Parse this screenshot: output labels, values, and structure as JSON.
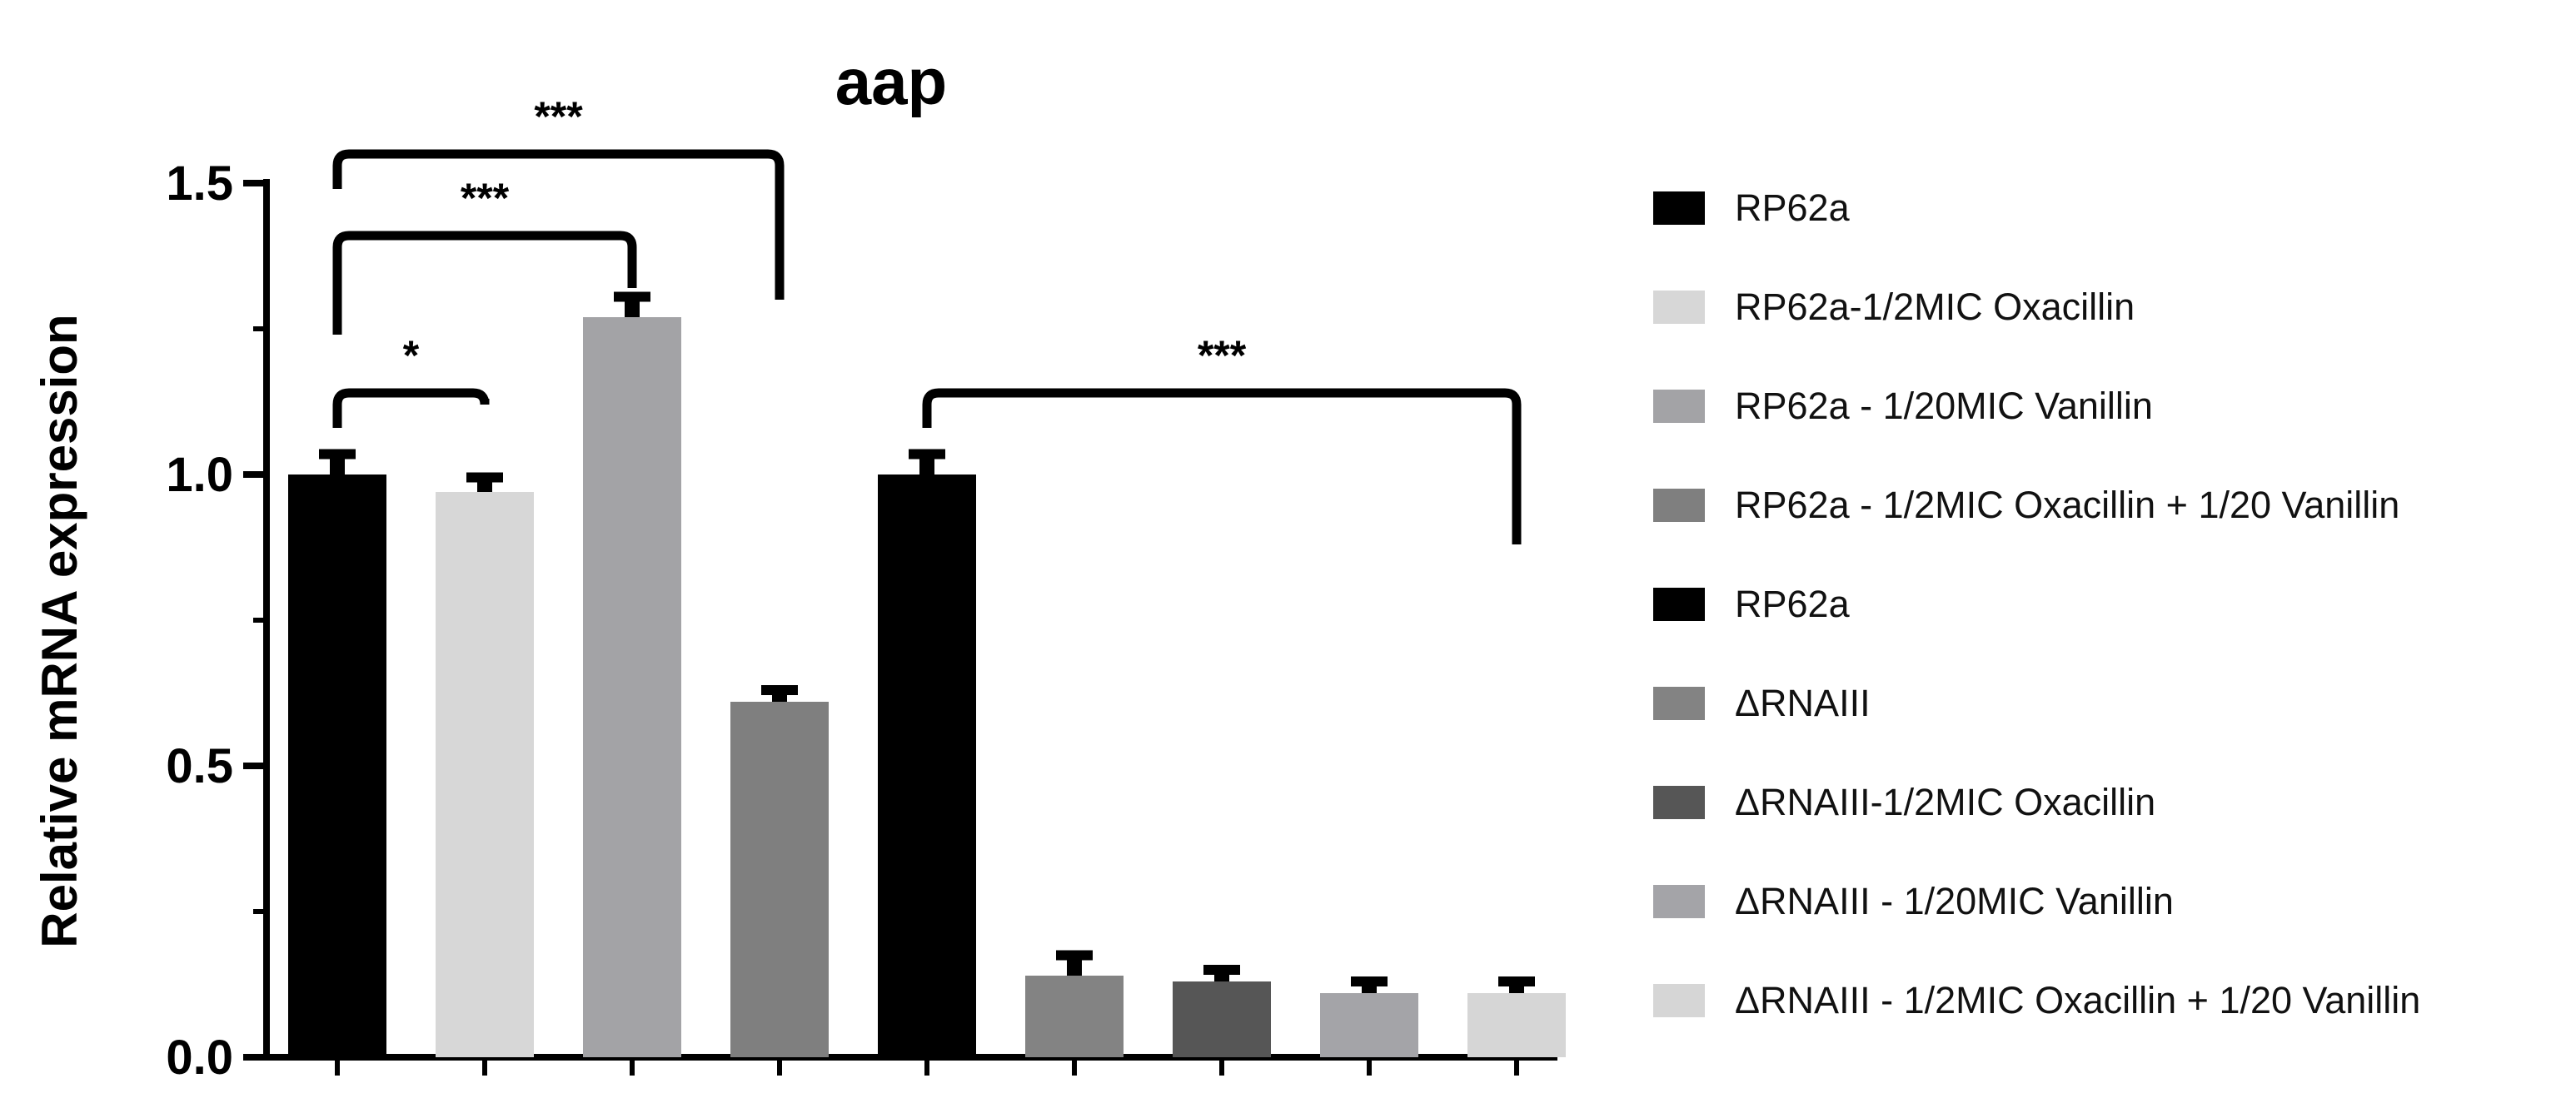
{
  "chart_data": {
    "type": "bar",
    "title": "aap",
    "ylabel": "Relative mRNA expression",
    "xlabel": "",
    "ylim": [
      0,
      1.5
    ],
    "yticks": [
      "0.0",
      "0.5",
      "1.0",
      "1.5"
    ],
    "grid": false,
    "legend_position": "right",
    "categories": [
      "RP62a",
      "RP62a-1/2MIC Oxacillin",
      "RP62a - 1/20MIC Vanillin",
      "RP62a - 1/2MIC Oxacillin + 1/20 Vanillin",
      "RP62a",
      "ΔRNAIII",
      "ΔRNAIII-1/2MIC Oxacillin",
      "ΔRNAIII - 1/20MIC Vanillin",
      "ΔRNAIII - 1/2MIC Oxacillin + 1/20 Vanillin"
    ],
    "values": [
      1.0,
      0.97,
      1.27,
      0.61,
      1.0,
      0.14,
      0.13,
      0.11,
      0.11
    ],
    "errors": [
      0.035,
      0.025,
      0.035,
      0.02,
      0.035,
      0.035,
      0.02,
      0.02,
      0.02
    ],
    "colors": [
      "#000000",
      "#d7d7d7",
      "#a3a3a6",
      "#7f7f7f",
      "#000000",
      "#838383",
      "#565656",
      "#a4a4a8",
      "#d6d6d6"
    ],
    "significance": [
      {
        "from": 0,
        "to": 1,
        "label": "*",
        "level": 1.14,
        "drop_left": 1.08,
        "drop_right": 1.13
      },
      {
        "from": 0,
        "to": 2,
        "label": "***",
        "level": 1.41,
        "drop_left": 1.24,
        "drop_right": 1.32
      },
      {
        "from": 0,
        "to": 3,
        "label": "***",
        "level": 1.55,
        "drop_left": 1.49,
        "drop_right": 1.3
      },
      {
        "from": 4,
        "to": 8,
        "label": "***",
        "level": 1.14,
        "drop_left": 1.08,
        "drop_right": 0.88
      }
    ]
  }
}
